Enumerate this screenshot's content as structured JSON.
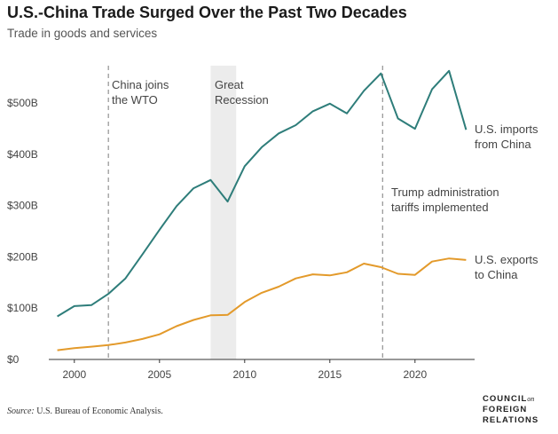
{
  "header": {
    "title": "U.S.-China Trade Surged Over the Past Two Decades",
    "subtitle": "Trade in goods and services"
  },
  "footer": {
    "source_label": "Source:",
    "source_text": " U.S. Bureau of Economic Analysis.",
    "logo_line1": "COUNCIL",
    "logo_on": "on",
    "logo_line2": "FOREIGN",
    "logo_line3": "RELATIONS"
  },
  "colors": {
    "imports": "#2e7d7a",
    "exports": "#e39a2b",
    "shade": "#ececec",
    "dashed": "#9a9a9a",
    "axis": "#333333"
  },
  "chart_data": {
    "type": "line",
    "title": "U.S.-China Trade Surged Over the Past Two Decades",
    "subtitle": "Trade in goods and services",
    "xlabel": "",
    "ylabel": "",
    "xlim": [
      1998.5,
      2023.5
    ],
    "ylim": [
      0,
      580
    ],
    "grid": false,
    "x_ticks": [
      2000,
      2005,
      2010,
      2015,
      2020
    ],
    "x_tick_labels": [
      "2000",
      "2005",
      "2010",
      "2015",
      "2020"
    ],
    "y_ticks": [
      0,
      100,
      200,
      300,
      400,
      500
    ],
    "y_tick_labels": [
      "$0",
      "$100B",
      "$200B",
      "$300B",
      "$400B",
      "$500B"
    ],
    "x": [
      1999,
      2000,
      2001,
      2002,
      2003,
      2004,
      2005,
      2006,
      2007,
      2008,
      2009,
      2010,
      2011,
      2012,
      2013,
      2014,
      2015,
      2016,
      2017,
      2018,
      2019,
      2020,
      2021,
      2022,
      2023
    ],
    "series": [
      {
        "name": "U.S. imports from China",
        "label_lines": [
          "U.S. imports",
          "from China"
        ],
        "color_key": "imports",
        "values": [
          84,
          104,
          106,
          128,
          158,
          205,
          253,
          299,
          334,
          350,
          308,
          377,
          414,
          441,
          457,
          484,
          499,
          480,
          524,
          558,
          470,
          450,
          527,
          563,
          448
        ]
      },
      {
        "name": "U.S. exports to China",
        "label_lines": [
          "U.S. exports",
          "to China"
        ],
        "color_key": "exports",
        "values": [
          18,
          22,
          25,
          28,
          33,
          40,
          49,
          65,
          77,
          86,
          87,
          112,
          130,
          142,
          158,
          166,
          164,
          170,
          187,
          180,
          167,
          165,
          191,
          197,
          194
        ]
      }
    ],
    "annotations": [
      {
        "type": "vline",
        "x": 2002,
        "lines": [
          "China joins",
          "the WTO"
        ]
      },
      {
        "type": "band",
        "x0": 2008,
        "x1": 2009.5,
        "lines": [
          "Great",
          "Recession"
        ]
      },
      {
        "type": "vline",
        "x": 2018.1,
        "lines": [
          "Trump administration",
          "tariffs implemented"
        ]
      }
    ]
  }
}
